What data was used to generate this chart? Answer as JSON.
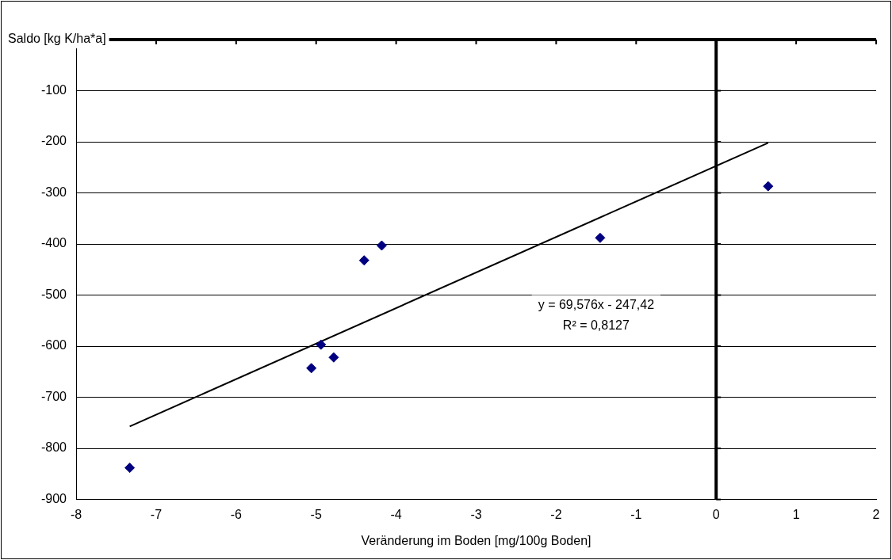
{
  "chart_data": {
    "type": "scatter",
    "xlabel": "Veränderung im Boden [mg/100g Boden]",
    "ylabel": "Saldo [kg K/ha*a]",
    "series": [
      {
        "color": "#000080",
        "marker": "diamond",
        "x": [
          -7.33,
          -5.06,
          -4.94,
          -4.78,
          -4.4,
          -4.18,
          -1.45,
          0.65
        ],
        "values": [
          -838,
          -643,
          -597,
          -622,
          -432,
          -403,
          -388,
          -287
        ]
      },
      {
        "type": "line",
        "color": "#000000",
        "marker": "none",
        "x": [
          -7.33,
          0.65
        ],
        "values": [
          -757,
          -202
        ]
      }
    ],
    "xlim": [
      -8,
      2
    ],
    "xticks": [
      -8,
      -7,
      -6,
      -5,
      -4,
      -3,
      -2,
      -1,
      0,
      1,
      2
    ],
    "ylim": [
      -900,
      0
    ],
    "yticks": [
      -900,
      -800,
      -700,
      -600,
      -500,
      -400,
      -300,
      -200,
      -100,
      {
        "value": 0,
        "label": null
      }
    ],
    "grid": "y",
    "legend": false,
    "annotations": [
      "y = 69,576x - 247,42",
      "R² = 0,8127"
    ]
  }
}
